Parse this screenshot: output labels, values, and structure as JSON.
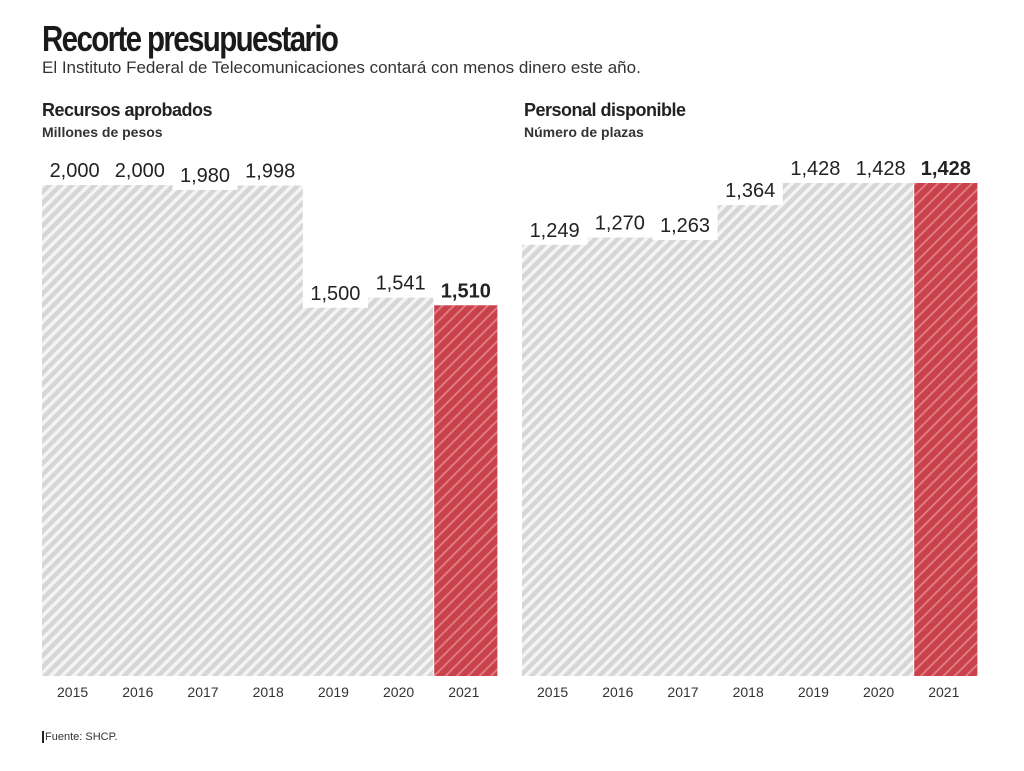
{
  "header": {
    "title": "Recorte presupuestario",
    "subtitle": "El Instituto Federal de Telecomunicaciones contará con menos dinero este año."
  },
  "colors": {
    "bar": "#d9d9d9",
    "highlight": "#c8414b",
    "hatch": "#ffffff"
  },
  "chart_data": [
    {
      "type": "bar",
      "title": "Recursos aprobados",
      "subtitle": "Millones de pesos",
      "categories": [
        "2015",
        "2016",
        "2017",
        "2018",
        "2019",
        "2020",
        "2021"
      ],
      "values": [
        2000,
        2000,
        1980,
        1998,
        1500,
        1541,
        1510
      ],
      "labels": [
        "2,000",
        "2,000",
        "1,980",
        "1,998",
        "1,500",
        "1,541",
        "1,510"
      ],
      "highlight": "2021",
      "grid": false
    },
    {
      "type": "bar",
      "title": "Personal disponible",
      "subtitle": "Número de plazas",
      "categories": [
        "2015",
        "2016",
        "2017",
        "2018",
        "2019",
        "2020",
        "2021"
      ],
      "values": [
        1249,
        1270,
        1263,
        1364,
        1428,
        1428,
        1428
      ],
      "labels": [
        "1,249",
        "1,270",
        "1,263",
        "1,364",
        "1,428",
        "1,428",
        "1,428"
      ],
      "highlight": "2021",
      "grid": false
    }
  ],
  "footer": {
    "source": "Fuente: SHCP."
  }
}
